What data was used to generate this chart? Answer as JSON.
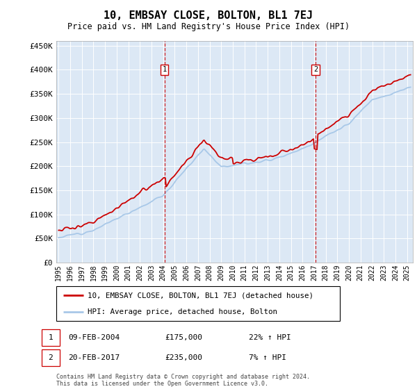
{
  "title": "10, EMBSAY CLOSE, BOLTON, BL1 7EJ",
  "subtitle": "Price paid vs. HM Land Registry's House Price Index (HPI)",
  "hpi_color": "#a8c8e8",
  "price_color": "#cc0000",
  "background_color": "#dce8f5",
  "ylim": [
    0,
    460000
  ],
  "yticks": [
    0,
    50000,
    100000,
    150000,
    200000,
    250000,
    300000,
    350000,
    400000,
    450000
  ],
  "marker1_year": 2004.12,
  "marker1_price": 175000,
  "marker1_label": "1",
  "marker1_date": "09-FEB-2004",
  "marker1_pct": "22% ↑ HPI",
  "marker2_year": 2017.12,
  "marker2_price": 235000,
  "marker2_label": "2",
  "marker2_date": "20-FEB-2017",
  "marker2_pct": "7% ↑ HPI",
  "legend_line1": "10, EMBSAY CLOSE, BOLTON, BL1 7EJ (detached house)",
  "legend_line2": "HPI: Average price, detached house, Bolton",
  "footnote1": "Contains HM Land Registry data © Crown copyright and database right 2024.",
  "footnote2": "This data is licensed under the Open Government Licence v3.0.",
  "xmin": 1994.8,
  "xmax": 2025.5
}
